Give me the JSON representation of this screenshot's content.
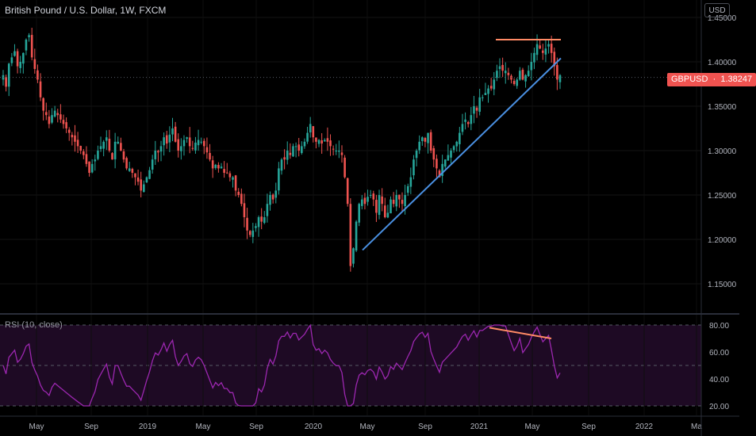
{
  "header": {
    "title": "British Pound / U.S. Dollar, 1W, FXCM",
    "currency": "USD"
  },
  "price_tag": {
    "symbol": "GBPUSD",
    "value": "1.38247"
  },
  "rsi_panel": {
    "label": "RSI (10, close)"
  },
  "colors": {
    "up": "#26a69a",
    "down": "#ef5350",
    "trendline": "#4a90e2",
    "resistance": "#ff8a65",
    "rsi": "#9c27b0",
    "rsi_band": "#1e0a24"
  },
  "chart_data": [
    {
      "type": "candlestick",
      "title": "British Pound / U.S. Dollar, 1W, FXCM",
      "y_ticks": [
        "1.45000",
        "1.40000",
        "1.35000",
        "1.30000",
        "1.25000",
        "1.20000",
        "1.15000"
      ],
      "ylim": [
        1.13,
        1.46
      ],
      "x_ticks": [
        "May",
        "Sep",
        "2019",
        "May",
        "Sep",
        "2020",
        "May",
        "Sep",
        "2021",
        "May",
        "Sep",
        "2022",
        "Ma"
      ],
      "last_price": 1.38247,
      "series": [
        {
          "shape": [
            1.385,
            1.372,
            1.398,
            1.405,
            1.412,
            1.395,
            1.4,
            1.41,
            1.425,
            1.43,
            1.405,
            1.392,
            1.38,
            1.36,
            1.345,
            1.34,
            1.33,
            1.34,
            1.345,
            1.34,
            1.335,
            1.33,
            1.325,
            1.32,
            1.315,
            1.31,
            1.305,
            1.3,
            1.295,
            1.285,
            1.275,
            1.285,
            1.29,
            1.3,
            1.305,
            1.31,
            1.315,
            1.3,
            1.29,
            1.31,
            1.31,
            1.3,
            1.29,
            1.28,
            1.28,
            1.275,
            1.27,
            1.265,
            1.255,
            1.262,
            1.27,
            1.278,
            1.29,
            1.3,
            1.298,
            1.305,
            1.315,
            1.308,
            1.318,
            1.325,
            1.31,
            1.3,
            1.305,
            1.312,
            1.315,
            1.305,
            1.302,
            1.309,
            1.312,
            1.31,
            1.305,
            1.298,
            1.29,
            1.28,
            1.284,
            1.28,
            1.282,
            1.275,
            1.275,
            1.27,
            1.27,
            1.255,
            1.25,
            1.24,
            1.225,
            1.21,
            1.205,
            1.21,
            1.215,
            1.225,
            1.22,
            1.225,
            1.24,
            1.25,
            1.245,
            1.255,
            1.28,
            1.29,
            1.29,
            1.3,
            1.295,
            1.305,
            1.305,
            1.3,
            1.305,
            1.31,
            1.32,
            1.33,
            1.315,
            1.31,
            1.312,
            1.308,
            1.312,
            1.31,
            1.305,
            1.302,
            1.3,
            1.3,
            1.295,
            1.27,
            1.24,
            1.17,
            1.19,
            1.22,
            1.24,
            1.245,
            1.24,
            1.248,
            1.25,
            1.245,
            1.23,
            1.25,
            1.24,
            1.225,
            1.23,
            1.245,
            1.24,
            1.25,
            1.245,
            1.24,
            1.25,
            1.26,
            1.27,
            1.29,
            1.3,
            1.31,
            1.315,
            1.31,
            1.32,
            1.3,
            1.29,
            1.28,
            1.27,
            1.285,
            1.29,
            1.295,
            1.3,
            1.305,
            1.31,
            1.32,
            1.33,
            1.335,
            1.33,
            1.34,
            1.35,
            1.345,
            1.36,
            1.36,
            1.365,
            1.37,
            1.37,
            1.38,
            1.39,
            1.395,
            1.39,
            1.39,
            1.385,
            1.38,
            1.375,
            1.38,
            1.39,
            1.38,
            1.385,
            1.39,
            1.4,
            1.41,
            1.42,
            1.415,
            1.41,
            1.415,
            1.42,
            1.41,
            1.395,
            1.38,
            1.385
          ]
        }
      ],
      "annotations": [
        {
          "kind": "trendline",
          "from": [
            "2020-Jun",
            1.188
          ],
          "to": [
            "2021-Jun",
            1.404
          ]
        },
        {
          "kind": "resistance",
          "value": 1.425
        }
      ]
    },
    {
      "type": "line",
      "title": "RSI (10, close)",
      "y_ticks": [
        "80.00",
        "60.00",
        "40.00",
        "20.00"
      ],
      "ylim": [
        15,
        85
      ],
      "levels": [
        80,
        50,
        20
      ],
      "annotations": [
        {
          "kind": "divergence-line",
          "from": 78,
          "to": 70
        }
      ]
    }
  ]
}
